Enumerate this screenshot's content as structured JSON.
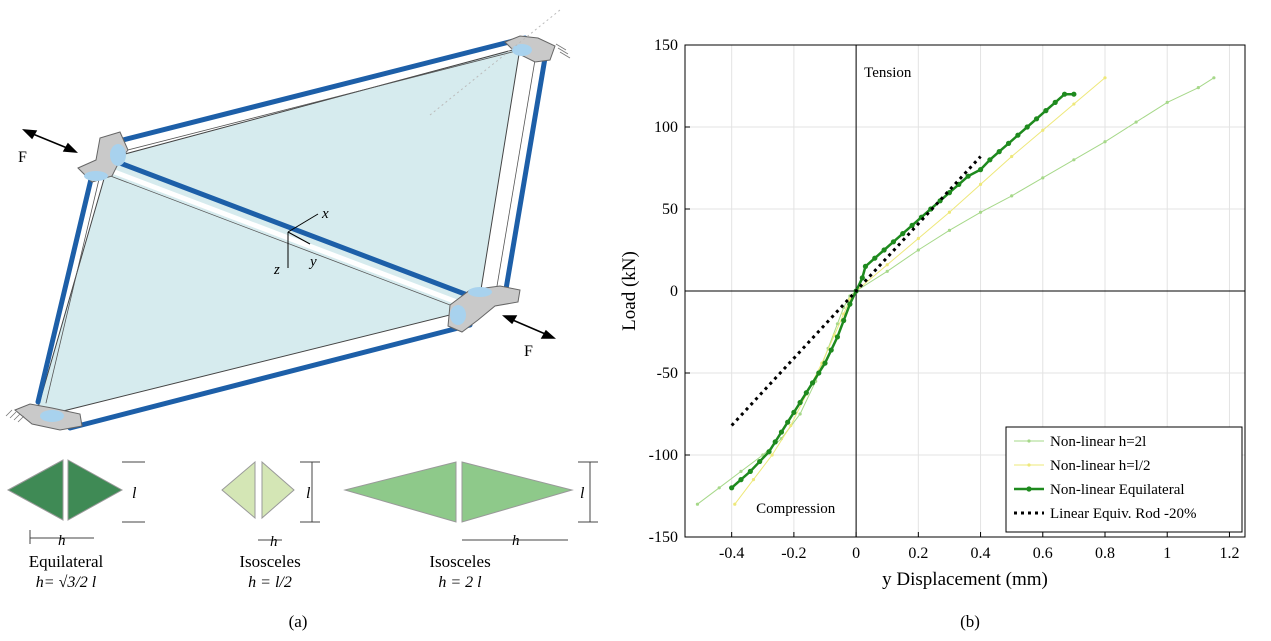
{
  "figure_a": {
    "caption": "(a)",
    "force_left": "F",
    "force_right": "F",
    "axis_x": "x",
    "axis_y": "y",
    "axis_z": "z",
    "shapes": [
      {
        "title": "Equilateral",
        "formula": "h= √3/2 l",
        "dim_h": "h",
        "dim_l": "l",
        "fill": "#3f8a55"
      },
      {
        "title": "Isosceles",
        "formula": "h = l/2",
        "dim_h": "h",
        "dim_l": "l",
        "fill": "#d4e6b5"
      },
      {
        "title": "Isosceles",
        "formula": "h = 2 l",
        "dim_h": "h",
        "dim_l": "l",
        "fill": "#8ec98a"
      }
    ],
    "colors": {
      "frame": "#1d5fa8",
      "panel": "#d6ebee",
      "joint": "#c9c9c9",
      "joint_blue": "#a8d2ee"
    }
  },
  "chart_data": {
    "type": "line",
    "caption": "(b)",
    "xlabel": "y Displacement (mm)",
    "ylabel": "Load (kN)",
    "xlim": [
      -0.55,
      1.25
    ],
    "ylim": [
      -150,
      150
    ],
    "xticks": [
      -0.4,
      -0.2,
      0,
      0.2,
      0.4,
      0.6,
      0.8,
      1,
      1.2
    ],
    "xtick_labels": [
      "-0.4",
      "-0.2",
      "0",
      "0.2",
      "0.4",
      "0.6",
      "0.8",
      "1",
      "1.2"
    ],
    "yticks": [
      -150,
      -100,
      -50,
      0,
      50,
      100,
      150
    ],
    "ytick_labels": [
      "-150",
      "-100",
      "-50",
      "0",
      "50",
      "100",
      "150"
    ],
    "grid": true,
    "legend_position": "bottom-right",
    "annotations": {
      "tension": "Tension",
      "compression": "Compression"
    },
    "series": [
      {
        "name": "Non-linear h=2l",
        "color": "#a6d889",
        "style": "thin-marker",
        "x": [
          -0.51,
          -0.44,
          -0.37,
          -0.3,
          -0.24,
          -0.18,
          -0.13,
          -0.09,
          -0.06,
          -0.04,
          -0.02,
          0,
          0.1,
          0.2,
          0.3,
          0.4,
          0.5,
          0.6,
          0.7,
          0.8,
          0.9,
          1.0,
          1.1,
          1.15
        ],
        "y": [
          -130,
          -120,
          -110,
          -100,
          -90,
          -75,
          -55,
          -35,
          -20,
          -10,
          -3,
          0,
          12,
          25,
          37,
          48,
          58,
          69,
          80,
          91,
          103,
          115,
          124,
          130
        ]
      },
      {
        "name": "Non-linear h=l/2",
        "color": "#eee87a",
        "style": "thin-marker",
        "x": [
          -0.39,
          -0.33,
          -0.27,
          -0.21,
          -0.16,
          -0.11,
          -0.07,
          -0.04,
          -0.02,
          0,
          0.1,
          0.2,
          0.3,
          0.4,
          0.5,
          0.6,
          0.7,
          0.8
        ],
        "y": [
          -130,
          -115,
          -100,
          -82,
          -63,
          -44,
          -27,
          -14,
          -5,
          0,
          16,
          32,
          48,
          65,
          82,
          98,
          114,
          130
        ]
      },
      {
        "name": "Non-linear Equilateral",
        "color": "#1e8a1e",
        "style": "thick-marker",
        "x": [
          -0.4,
          -0.37,
          -0.34,
          -0.31,
          -0.28,
          -0.26,
          -0.24,
          -0.22,
          -0.2,
          -0.18,
          -0.16,
          -0.14,
          -0.12,
          -0.1,
          -0.08,
          -0.06,
          -0.04,
          -0.02,
          0,
          0.02,
          0.03,
          0.06,
          0.09,
          0.12,
          0.15,
          0.18,
          0.21,
          0.24,
          0.27,
          0.3,
          0.33,
          0.36,
          0.4,
          0.43,
          0.46,
          0.49,
          0.52,
          0.55,
          0.58,
          0.61,
          0.64,
          0.67,
          0.7
        ],
        "y": [
          -120,
          -115,
          -110,
          -104,
          -98,
          -92,
          -86,
          -80,
          -74,
          -68,
          -62,
          -56,
          -50,
          -44,
          -36,
          -28,
          -18,
          -8,
          0,
          8,
          15,
          20,
          25,
          30,
          35,
          40,
          45,
          50,
          55,
          60,
          65,
          70,
          74,
          80,
          85,
          90,
          95,
          100,
          105,
          110,
          115,
          120,
          120
        ]
      },
      {
        "name": "Linear Equiv. Rod -20%",
        "color": "#000000",
        "style": "dotted",
        "x": [
          -0.4,
          0.4
        ],
        "y": [
          -82,
          82
        ]
      }
    ]
  }
}
